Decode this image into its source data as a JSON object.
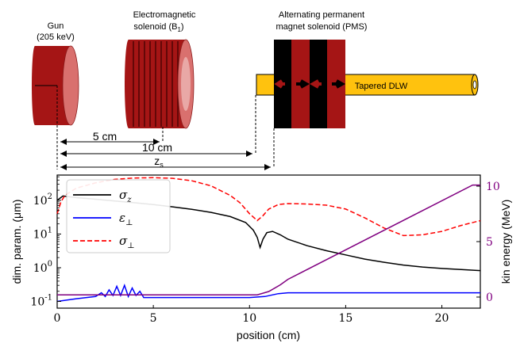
{
  "diagram": {
    "gun_label_line1": "Gun",
    "gun_label_line2": "(205 keV)",
    "solenoid_label_line1": "Electromagnetic",
    "solenoid_label_line2": "solenoid (B",
    "solenoid_label_sub": "1",
    "solenoid_label_close": ")",
    "pms_label_line1": "Alternating permanent",
    "pms_label_line2": "magnet solenoid (PMS)",
    "dlw_label": "Tapered DLW",
    "dim_5cm": "5 cm",
    "dim_10cm": "10 cm",
    "dim_zs": "z",
    "dim_zs_sub": "s"
  },
  "colors": {
    "dark_red": "#a51515",
    "light_red": "#d9706e",
    "gold": "#ffc20e",
    "purple": "#800080",
    "blue": "#0000ff",
    "red": "#ff0000"
  },
  "chart_data": {
    "type": "line",
    "xlabel": "position (cm)",
    "ylabel_left": "dim. param. (μm)",
    "ylabel_right": "kin energy (MeV)",
    "xlim": [
      0,
      22
    ],
    "ylim_left_log10": [
      -1.2,
      2.75
    ],
    "ylim_right": [
      -1,
      11
    ],
    "xticks": [
      0,
      5,
      10,
      15,
      20
    ],
    "yticks_left_labels": [
      "10",
      "10",
      "10",
      "10"
    ],
    "yticks_left_exps": [
      "-1",
      "0",
      "1",
      "2"
    ],
    "yticks_right": [
      0,
      5,
      10
    ],
    "legend": {
      "sigma_z": "σ",
      "sigma_z_sub": "z",
      "eps": "ε",
      "eps_sub": "⊥",
      "sigma_perp": "σ",
      "sigma_perp_sub": "⊥"
    },
    "series": [
      {
        "name": "σ_z",
        "color": "#000000",
        "axis": "left",
        "x": [
          0,
          0.3,
          1,
          2,
          3,
          4,
          5,
          6,
          7,
          8,
          9,
          9.8,
          10.2,
          10.4,
          10.55,
          10.7,
          10.9,
          11.2,
          11.6,
          12,
          13,
          14,
          15,
          16,
          17,
          18,
          19,
          20,
          21,
          22
        ],
        "y": [
          100,
          135,
          120,
          108,
          96,
          85,
          75,
          64,
          54,
          44,
          33,
          22,
          13,
          8,
          4,
          7,
          11,
          12,
          9.5,
          7,
          4.5,
          3.2,
          2.4,
          1.8,
          1.45,
          1.2,
          1.05,
          0.95,
          0.88,
          0.82
        ]
      },
      {
        "name": "ε_⊥",
        "color": "#0000ff",
        "axis": "left",
        "x": [
          0,
          1,
          2,
          2.3,
          2.5,
          2.7,
          2.9,
          3.1,
          3.3,
          3.5,
          3.7,
          3.9,
          4.1,
          4.3,
          4.5,
          5,
          6,
          8,
          10,
          10.8,
          11.5,
          12,
          14,
          16,
          18,
          20,
          22
        ],
        "y": [
          0.1,
          0.12,
          0.14,
          0.18,
          0.14,
          0.22,
          0.15,
          0.28,
          0.15,
          0.3,
          0.14,
          0.25,
          0.15,
          0.2,
          0.13,
          0.13,
          0.13,
          0.13,
          0.13,
          0.14,
          0.17,
          0.18,
          0.18,
          0.18,
          0.18,
          0.18,
          0.18
        ]
      },
      {
        "name": "σ_⊥",
        "color": "#ff0000",
        "axis": "left",
        "x": [
          0,
          0.2,
          0.4,
          1,
          2,
          3,
          4,
          5,
          6,
          7,
          8,
          9,
          9.5,
          10,
          10.4,
          10.7,
          11,
          11.5,
          12,
          13,
          14,
          15,
          16,
          17,
          18,
          19,
          20,
          21,
          22
        ],
        "y": [
          40,
          90,
          140,
          230,
          330,
          420,
          460,
          470,
          450,
          380,
          270,
          140,
          85,
          40,
          25,
          35,
          55,
          75,
          80,
          78,
          72,
          55,
          30,
          15,
          9,
          9.5,
          12,
          18,
          25
        ]
      },
      {
        "name": "kin energy",
        "color": "#800080",
        "axis": "right",
        "x": [
          0,
          10.4,
          11,
          11.6,
          12,
          21.6,
          22
        ],
        "y": [
          0.2,
          0.2,
          0.5,
          1.1,
          1.6,
          10.1,
          10.1
        ]
      }
    ]
  }
}
